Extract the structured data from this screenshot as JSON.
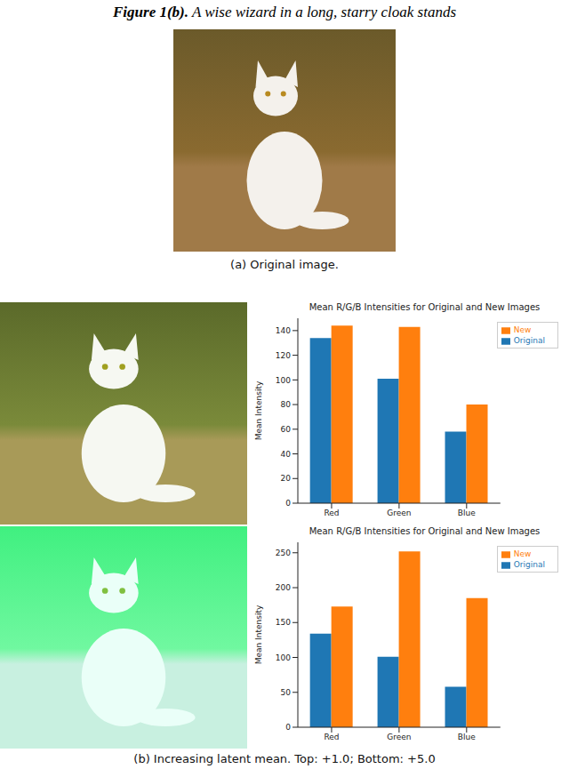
{
  "header_label": "Figure 1(b).",
  "header_text": "A wise wizard in a long, starry cloak stands",
  "figure_a": {
    "caption": "(a) Original image."
  },
  "figure_b": {
    "caption": "(b) Increasing latent mean. Top: +1.0; Bottom: +5.0"
  },
  "chart_data": [
    {
      "type": "bar",
      "title": "Mean R/G/B Intensities for Original and New Images",
      "y_label": "Mean Intensity",
      "categories": [
        "Red",
        "Green",
        "Blue"
      ],
      "series": [
        {
          "name": "Original",
          "color": "#1f77b4",
          "values": [
            134,
            101,
            58
          ]
        },
        {
          "name": "New",
          "color": "#ff7f0e",
          "values": [
            144,
            143,
            80
          ]
        }
      ],
      "ylim": [
        0,
        150
      ],
      "yticks": [
        0,
        20,
        40,
        60,
        80,
        100,
        120,
        140
      ],
      "legend": "upper right"
    },
    {
      "type": "bar",
      "title": "Mean R/G/B Intensities for Original and New Images",
      "y_label": "Mean Intensity",
      "categories": [
        "Red",
        "Green",
        "Blue"
      ],
      "series": [
        {
          "name": "Original",
          "color": "#1f77b4",
          "values": [
            134,
            101,
            58
          ]
        },
        {
          "name": "New",
          "color": "#ff7f0e",
          "values": [
            173,
            252,
            185
          ]
        }
      ],
      "ylim": [
        0,
        265
      ],
      "yticks": [
        0,
        50,
        100,
        150,
        200,
        250
      ],
      "legend": "upper right"
    }
  ]
}
